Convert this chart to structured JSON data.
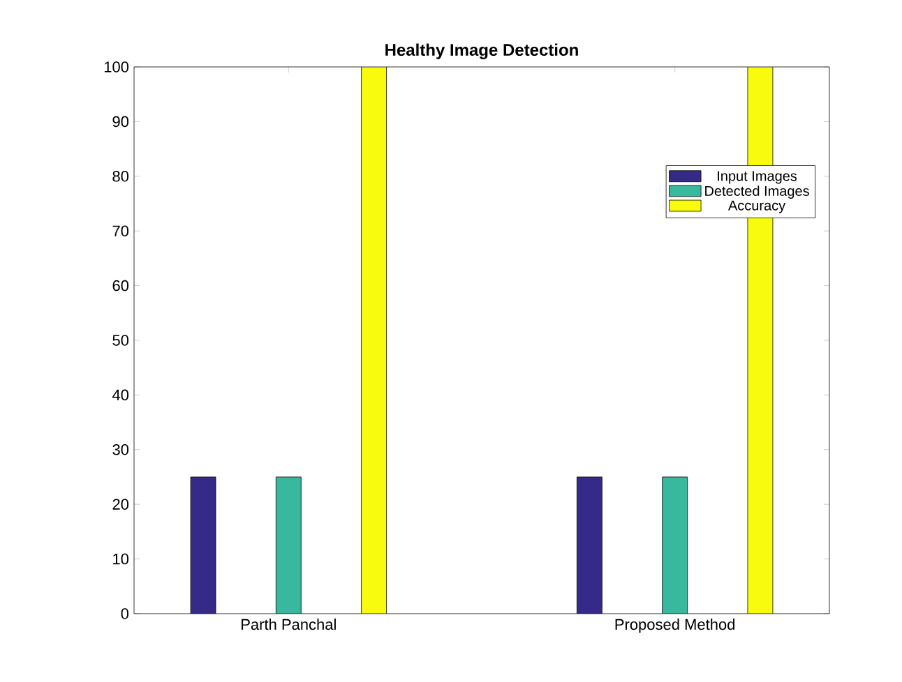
{
  "chart_data": {
    "type": "bar",
    "title": "Healthy Image Detection",
    "categories": [
      "Parth Panchal",
      "Proposed Method"
    ],
    "series": [
      {
        "name": "Input Images",
        "color": "#352a87",
        "values": [
          25,
          25
        ]
      },
      {
        "name": "Detected Images",
        "color": "#38b99e",
        "values": [
          25,
          25
        ]
      },
      {
        "name": "Accuracy",
        "color": "#f9fb0e",
        "values": [
          100,
          100
        ]
      }
    ],
    "ylim": [
      0,
      100
    ],
    "yticks": [
      0,
      10,
      20,
      30,
      40,
      50,
      60,
      70,
      80,
      90,
      100
    ],
    "grid": false,
    "legend": "top right"
  }
}
